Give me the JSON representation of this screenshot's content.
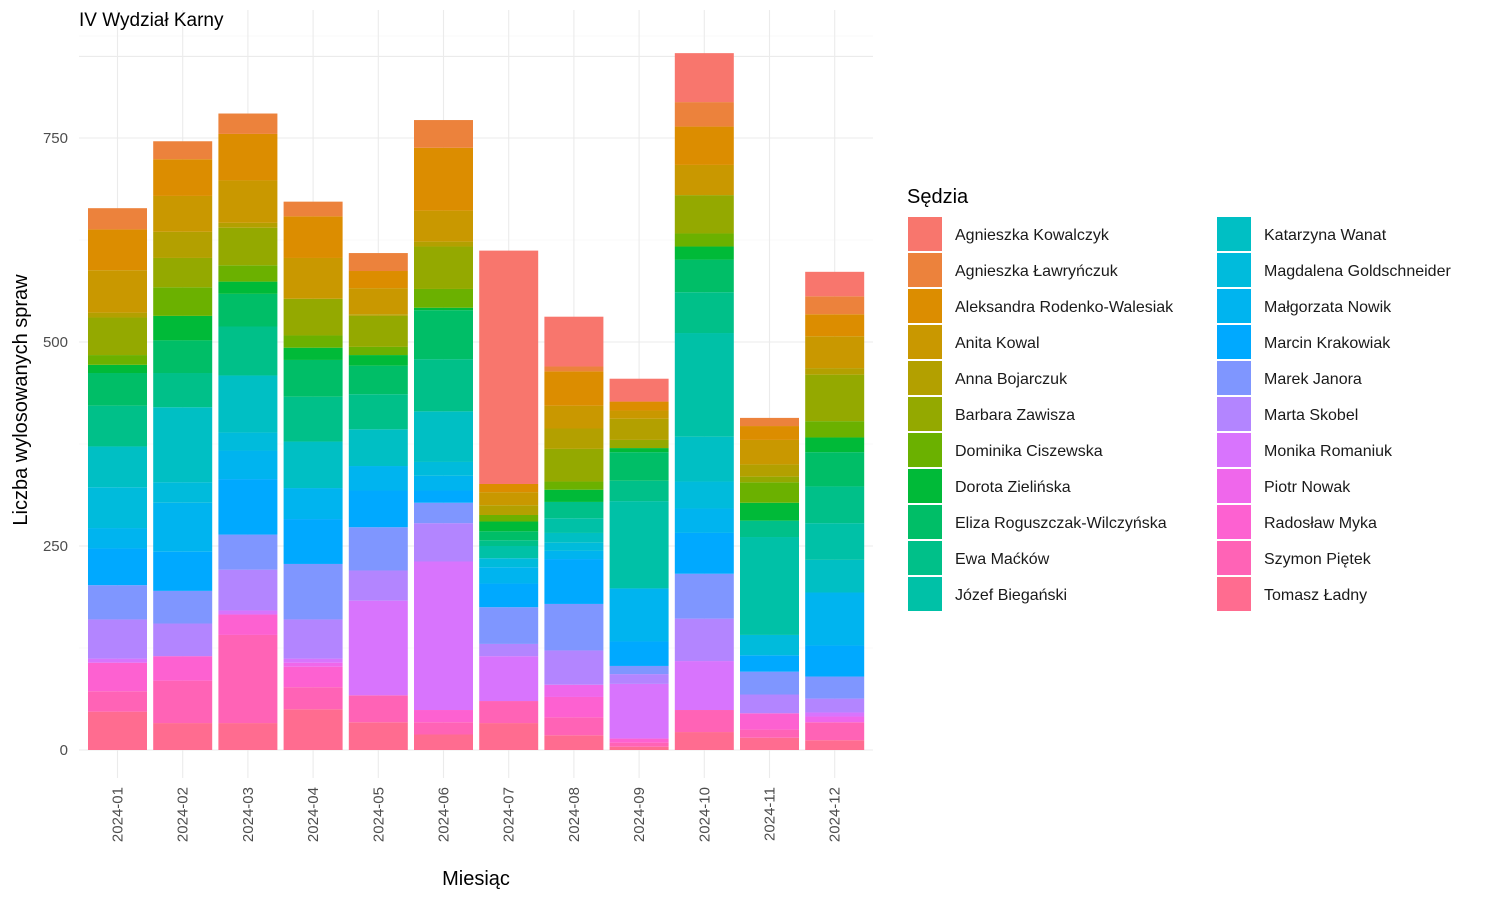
{
  "chart_data": {
    "type": "bar",
    "stacked": true,
    "title": "IV Wydział Karny",
    "xlabel": "Miesiąc",
    "ylabel": "Liczba wylosowanych spraw",
    "legend_title": "Sędzia",
    "legend_position": "right",
    "grid": true,
    "ylim": [
      0,
      900
    ],
    "y_ticks": [
      0,
      250,
      500,
      750
    ],
    "categories": [
      "2024-01",
      "2024-02",
      "2024-03",
      "2024-04",
      "2024-05",
      "2024-06",
      "2024-07",
      "2024-08",
      "2024-09",
      "2024-10",
      "2024-11",
      "2024-12"
    ],
    "series": [
      {
        "name": "Agnieszka Kowalczyk",
        "color": "#F8766D",
        "values": [
          0,
          0,
          0,
          0,
          0,
          0,
          286,
          61,
          28,
          60,
          0,
          30
        ]
      },
      {
        "name": "Agnieszka Ławryńczuk",
        "color": "#EC823C",
        "values": [
          26,
          22,
          25,
          18,
          22,
          34,
          0,
          6,
          0,
          30,
          10,
          22
        ]
      },
      {
        "name": "Aleksandra Rodenko-Walesiak",
        "color": "#DC8D00",
        "values": [
          50,
          45,
          57,
          51,
          21,
          77,
          10,
          42,
          11,
          47,
          17,
          27
        ]
      },
      {
        "name": "Anita Kowal",
        "color": "#C99800",
        "values": [
          52,
          44,
          52,
          50,
          32,
          38,
          16,
          28,
          10,
          37,
          30,
          39
        ]
      },
      {
        "name": "Anna Bojarczuk",
        "color": "#B3A000",
        "values": [
          6,
          32,
          6,
          0,
          2,
          6,
          12,
          25,
          26,
          0,
          15,
          8
        ]
      },
      {
        "name": "Barbara Zawisza",
        "color": "#94A900",
        "values": [
          46,
          36,
          46,
          45,
          38,
          52,
          0,
          40,
          10,
          47,
          7,
          57
        ]
      },
      {
        "name": "Dominika Ciszewska",
        "color": "#6BB100",
        "values": [
          12,
          35,
          20,
          15,
          10,
          23,
          8,
          10,
          0,
          16,
          25,
          20
        ]
      },
      {
        "name": "Dorota Zielińska",
        "color": "#00BA38",
        "values": [
          10,
          30,
          15,
          15,
          13,
          3,
          12,
          15,
          5,
          16,
          22,
          18
        ]
      },
      {
        "name": "Eliza Roguszczak-Wilczyńska",
        "color": "#00BE67",
        "values": [
          40,
          40,
          40,
          45,
          35,
          60,
          11,
          0,
          35,
          40,
          0,
          42
        ]
      },
      {
        "name": "Ewa Maćków",
        "color": "#00C089",
        "values": [
          50,
          42,
          60,
          55,
          43,
          64,
          7,
          20,
          25,
          50,
          20,
          45
        ]
      },
      {
        "name": "Józef Biegański",
        "color": "#00C1A7",
        "values": [
          0,
          0,
          0,
          0,
          0,
          0,
          15,
          18,
          107,
          127,
          120,
          45
        ]
      },
      {
        "name": "Katarzyna Wanat",
        "color": "#00BFC4",
        "values": [
          50,
          92,
          70,
          57,
          45,
          62,
          0,
          12,
          0,
          55,
          0,
          40
        ]
      },
      {
        "name": "Magdalena Goldschneider",
        "color": "#00BBDC",
        "values": [
          50,
          25,
          22,
          0,
          0,
          17,
          11,
          10,
          0,
          33,
          25,
          0
        ]
      },
      {
        "name": "Małgorzata Nowik",
        "color": "#00B4EF",
        "values": [
          25,
          60,
          35,
          38,
          30,
          18,
          20,
          10,
          65,
          30,
          0,
          65
        ]
      },
      {
        "name": "Marcin Krakowiak",
        "color": "#00A9FF",
        "values": [
          45,
          48,
          68,
          55,
          45,
          15,
          29,
          55,
          30,
          50,
          20,
          38
        ]
      },
      {
        "name": "Marek Janora",
        "color": "#7F96FF",
        "values": [
          42,
          40,
          43,
          68,
          53,
          25,
          45,
          57,
          10,
          55,
          28,
          27
        ]
      },
      {
        "name": "Marta Skobel",
        "color": "#B385FF",
        "values": [
          48,
          40,
          50,
          48,
          37,
          47,
          15,
          42,
          12,
          52,
          23,
          17
        ]
      },
      {
        "name": "Monika Romaniuk",
        "color": "#D874FD",
        "values": [
          5,
          0,
          5,
          5,
          116,
          182,
          55,
          0,
          67,
          60,
          0,
          5
        ]
      },
      {
        "name": "Piotr Nowak",
        "color": "#EF67EB",
        "values": [
          0,
          0,
          0,
          5,
          0,
          0,
          0,
          15,
          0,
          0,
          0,
          7
        ]
      },
      {
        "name": "Radosław Myka",
        "color": "#FD61D1",
        "values": [
          35,
          30,
          25,
          25,
          0,
          15,
          0,
          25,
          5,
          0,
          20,
          0
        ]
      },
      {
        "name": "Szymon Piętek",
        "color": "#FF63B6",
        "values": [
          25,
          52,
          108,
          27,
          33,
          15,
          27,
          22,
          5,
          27,
          10,
          22
        ]
      },
      {
        "name": "Tomasz Ładny",
        "color": "#FF6C90",
        "values": [
          47,
          33,
          33,
          50,
          34,
          19,
          33,
          18,
          4,
          22,
          15,
          12
        ]
      }
    ]
  }
}
